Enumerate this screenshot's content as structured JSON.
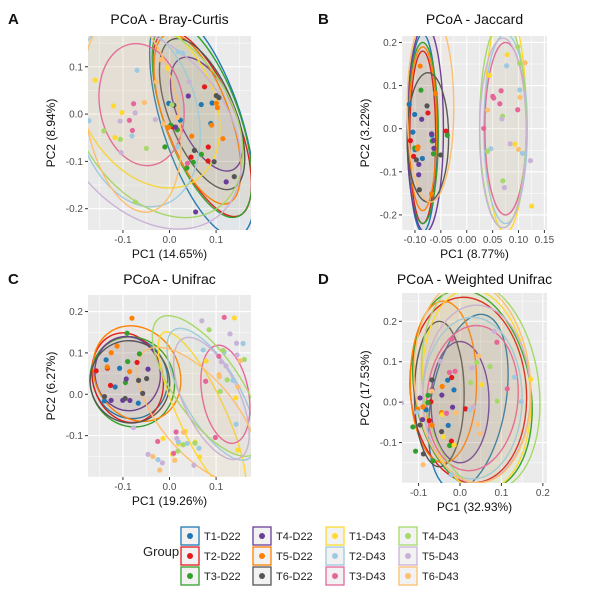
{
  "colors": {
    "T1-D22": "#1f78b4",
    "T2-D22": "#e31a1c",
    "T3-D22": "#33a02c",
    "T4-D22": "#6a3d9a",
    "T5-D22": "#ff7f00",
    "T6-D22": "#555555",
    "T1-D43": "#ffd92f",
    "T2-D43": "#9ecae1",
    "T3-D43": "#e7669a",
    "T4-D43": "#a6d96a",
    "T5-D43": "#cab2d6",
    "T6-D43": "#fdbf6f"
  },
  "legend": {
    "title": "Group",
    "entries": [
      "T1-D22",
      "T4-D22",
      "T1-D43",
      "T4-D43",
      "T2-D22",
      "T5-D22",
      "T2-D43",
      "T5-D43",
      "T3-D22",
      "T6-D22",
      "T3-D43",
      "T6-D43"
    ]
  },
  "chart_data": [
    {
      "panel_label": "A",
      "type": "scatter",
      "title": "PCoA - Bray-Curtis",
      "xlabel": "PC1 (14.65%)",
      "ylabel": "PC2 (8.94%)",
      "xlim": [
        -0.175,
        0.175
      ],
      "ylim": [
        -0.245,
        0.165
      ],
      "xticks": [
        -0.1,
        0.0,
        0.1
      ],
      "xtick_labels": [
        "-0.1",
        "0.0",
        "0.1"
      ],
      "yticks": [
        -0.2,
        -0.1,
        0.0,
        0.1
      ],
      "ytick_labels": [
        "-0.2",
        "-0.1",
        "0.0",
        "0.1"
      ],
      "grid": true,
      "clusters": [
        {
          "center": [
            0.07,
            -0.01
          ],
          "spread": [
            0.045,
            0.075
          ],
          "groups": [
            "T1-D22",
            "T2-D22",
            "T3-D22",
            "T4-D22",
            "T5-D22",
            "T6-D22"
          ]
        },
        {
          "center": [
            -0.07,
            0.0
          ],
          "spread": [
            0.06,
            0.09
          ],
          "groups": [
            "T1-D43",
            "T2-D43",
            "T3-D43",
            "T4-D43",
            "T5-D43",
            "T6-D43"
          ]
        }
      ],
      "ellipses": [
        {
          "group": "T1-D22",
          "cx": 0.07,
          "cy": -0.02,
          "rx": 0.085,
          "ry": 0.25,
          "rot": -18
        },
        {
          "group": "T2-D22",
          "cx": 0.07,
          "cy": -0.02,
          "rx": 0.075,
          "ry": 0.21,
          "rot": -22
        },
        {
          "group": "T3-D22",
          "cx": 0.07,
          "cy": -0.01,
          "rx": 0.08,
          "ry": 0.22,
          "rot": -20
        },
        {
          "group": "T4-D22",
          "cx": 0.08,
          "cy": 0.0,
          "rx": 0.06,
          "ry": 0.13,
          "rot": -25
        },
        {
          "group": "T5-D22",
          "cx": 0.06,
          "cy": -0.01,
          "rx": 0.07,
          "ry": 0.19,
          "rot": -20
        },
        {
          "group": "T6-D22",
          "cx": 0.07,
          "cy": 0.0,
          "rx": 0.07,
          "ry": 0.17,
          "rot": -22
        },
        {
          "group": "T1-D43",
          "cx": -0.05,
          "cy": 0.03,
          "rx": 0.14,
          "ry": 0.2,
          "rot": -30
        },
        {
          "group": "T2-D43",
          "cx": -0.07,
          "cy": 0.0,
          "rx": 0.13,
          "ry": 0.2,
          "rot": -15
        },
        {
          "group": "T3-D43",
          "cx": -0.06,
          "cy": 0.02,
          "rx": 0.09,
          "ry": 0.13,
          "rot": -10
        },
        {
          "group": "T4-D43",
          "cx": -0.03,
          "cy": -0.01,
          "rx": 0.16,
          "ry": 0.23,
          "rot": -35
        },
        {
          "group": "T5-D43",
          "cx": -0.05,
          "cy": -0.03,
          "rx": 0.17,
          "ry": 0.24,
          "rot": -40
        },
        {
          "group": "T6-D43",
          "cx": -0.08,
          "cy": 0.0,
          "rx": 0.1,
          "ry": 0.21,
          "rot": -10
        }
      ]
    },
    {
      "panel_label": "B",
      "type": "scatter",
      "title": "PCoA - Jaccard",
      "xlabel": "PC1 (8.77%)",
      "ylabel": "PC2 (3.22%)",
      "xlim": [
        -0.125,
        0.155
      ],
      "ylim": [
        -0.235,
        0.215
      ],
      "xticks": [
        -0.1,
        -0.05,
        0.0,
        0.05,
        0.1,
        0.15
      ],
      "xtick_labels": [
        "-0.10",
        "-0.05",
        "0.00",
        "0.05",
        "0.10",
        "0.15"
      ],
      "yticks": [
        -0.2,
        -0.1,
        0.0,
        0.1,
        0.2
      ],
      "ytick_labels": [
        "-0.2",
        "-0.1",
        "0.0",
        "0.1",
        "0.2"
      ],
      "grid": true,
      "clusters": [
        {
          "center": [
            -0.085,
            -0.02
          ],
          "spread": [
            0.018,
            0.07
          ],
          "groups": [
            "T1-D22",
            "T2-D22",
            "T3-D22",
            "T4-D22",
            "T5-D22",
            "T6-D22"
          ]
        },
        {
          "center": [
            0.075,
            0.02
          ],
          "spread": [
            0.025,
            0.09
          ],
          "groups": [
            "T1-D43",
            "T2-D43",
            "T3-D43",
            "T4-D43",
            "T5-D43",
            "T6-D43"
          ]
        }
      ],
      "ellipses": [
        {
          "group": "T1-D22",
          "cx": -0.085,
          "cy": -0.01,
          "rx": 0.028,
          "ry": 0.23,
          "rot": 0
        },
        {
          "group": "T2-D22",
          "cx": -0.085,
          "cy": -0.02,
          "rx": 0.025,
          "ry": 0.2,
          "rot": 0
        },
        {
          "group": "T3-D22",
          "cx": -0.085,
          "cy": -0.01,
          "rx": 0.03,
          "ry": 0.21,
          "rot": 0
        },
        {
          "group": "T4-D22",
          "cx": -0.08,
          "cy": 0.0,
          "rx": 0.035,
          "ry": 0.24,
          "rot": 0
        },
        {
          "group": "T5-D22",
          "cx": -0.085,
          "cy": 0.0,
          "rx": 0.027,
          "ry": 0.19,
          "rot": 0
        },
        {
          "group": "T6-D22",
          "cx": -0.075,
          "cy": -0.02,
          "rx": 0.04,
          "ry": 0.15,
          "rot": 0
        },
        {
          "group": "T1-D43",
          "cx": 0.075,
          "cy": 0.02,
          "rx": 0.04,
          "ry": 0.26,
          "rot": 0
        },
        {
          "group": "T2-D43",
          "cx": 0.075,
          "cy": 0.0,
          "rx": 0.042,
          "ry": 0.22,
          "rot": 0
        },
        {
          "group": "T3-D43",
          "cx": 0.075,
          "cy": 0.0,
          "rx": 0.04,
          "ry": 0.2,
          "rot": 0
        },
        {
          "group": "T4-D43",
          "cx": 0.07,
          "cy": 0.01,
          "rx": 0.045,
          "ry": 0.24,
          "rot": 0
        },
        {
          "group": "T5-D43",
          "cx": 0.07,
          "cy": -0.01,
          "rx": 0.045,
          "ry": 0.22,
          "rot": 0
        },
        {
          "group": "T6-D43",
          "cx": -0.07,
          "cy": 0.05,
          "rx": 0.045,
          "ry": 0.22,
          "rot": 0
        }
      ]
    },
    {
      "panel_label": "C",
      "type": "scatter",
      "title": "PCoA - Unifrac",
      "xlabel": "PC1 (19.26%)",
      "ylabel": "PC2 (6.27%)",
      "xlim": [
        -0.175,
        0.175
      ],
      "ylim": [
        -0.2,
        0.24
      ],
      "xticks": [
        -0.1,
        0.0,
        0.1
      ],
      "xtick_labels": [
        "-0.1",
        "0.0",
        "0.1"
      ],
      "yticks": [
        -0.1,
        0.0,
        0.1,
        0.2
      ],
      "ytick_labels": [
        "-0.1",
        "0.0",
        "0.1",
        "0.2"
      ],
      "grid": true,
      "clusters": [
        {
          "center": [
            -0.09,
            0.04
          ],
          "spread": [
            0.04,
            0.05
          ],
          "groups": [
            "T1-D22",
            "T2-D22",
            "T3-D22",
            "T4-D22",
            "T5-D22",
            "T6-D22"
          ]
        },
        {
          "center": [
            0.02,
            -0.12
          ],
          "spread": [
            0.04,
            0.03
          ],
          "groups": [
            "T1-D43",
            "T2-D43",
            "T3-D43",
            "T4-D43",
            "T5-D43",
            "T6-D43"
          ]
        },
        {
          "center": [
            0.13,
            0.05
          ],
          "spread": [
            0.025,
            0.09
          ],
          "groups": [
            "T1-D43",
            "T2-D43",
            "T3-D43",
            "T4-D43",
            "T5-D43",
            "T6-D43"
          ]
        }
      ],
      "ellipses": [
        {
          "group": "T1-D22",
          "cx": -0.085,
          "cy": 0.04,
          "rx": 0.08,
          "ry": 0.1,
          "rot": -20
        },
        {
          "group": "T2-D22",
          "cx": -0.09,
          "cy": 0.04,
          "rx": 0.075,
          "ry": 0.11,
          "rot": -15
        },
        {
          "group": "T3-D22",
          "cx": -0.08,
          "cy": 0.03,
          "rx": 0.09,
          "ry": 0.11,
          "rot": -20
        },
        {
          "group": "T4-D22",
          "cx": -0.09,
          "cy": 0.05,
          "rx": 0.07,
          "ry": 0.09,
          "rot": -10
        },
        {
          "group": "T5-D22",
          "cx": -0.07,
          "cy": 0.05,
          "rx": 0.09,
          "ry": 0.12,
          "rot": -30
        },
        {
          "group": "T6-D22",
          "cx": -0.085,
          "cy": 0.03,
          "rx": 0.085,
          "ry": 0.1,
          "rot": -20
        },
        {
          "group": "T1-D43",
          "cx": 0.07,
          "cy": -0.05,
          "rx": 0.05,
          "ry": 0.22,
          "rot": -25
        },
        {
          "group": "T2-D43",
          "cx": 0.09,
          "cy": 0.0,
          "rx": 0.06,
          "ry": 0.18,
          "rot": -30
        },
        {
          "group": "T3-D43",
          "cx": 0.12,
          "cy": 0.0,
          "rx": 0.05,
          "ry": 0.12,
          "rot": -10
        },
        {
          "group": "T4-D43",
          "cx": 0.08,
          "cy": 0.02,
          "rx": 0.07,
          "ry": 0.2,
          "rot": -35
        },
        {
          "group": "T5-D43",
          "cx": 0.09,
          "cy": -0.01,
          "rx": 0.06,
          "ry": 0.16,
          "rot": -25
        },
        {
          "group": "T6-D43",
          "cx": 0.06,
          "cy": -0.05,
          "rx": 0.08,
          "ry": 0.2,
          "rot": -40
        }
      ]
    },
    {
      "panel_label": "D",
      "type": "scatter",
      "title": "PCoA - Weighted Unifrac",
      "xlabel": "PC1 (32.93%)",
      "ylabel": "PC2 (17.53%)",
      "xlim": [
        -0.14,
        0.21
      ],
      "ylim": [
        -0.2,
        0.27
      ],
      "xticks": [
        -0.1,
        0.0,
        0.1,
        0.2
      ],
      "xtick_labels": [
        "-0.1",
        "0.0",
        "0.1",
        "0.2"
      ],
      "yticks": [
        -0.1,
        0.0,
        0.1,
        0.2
      ],
      "ytick_labels": [
        "-0.1",
        "0.0",
        "0.1",
        "0.2"
      ],
      "grid": true,
      "clusters": [
        {
          "center": [
            -0.07,
            0.0
          ],
          "spread": [
            0.03,
            0.06
          ],
          "groups": [
            "T1-D22",
            "T2-D22",
            "T3-D22",
            "T4-D22",
            "T5-D22",
            "T6-D22"
          ]
        },
        {
          "center": [
            0.01,
            0.02
          ],
          "spread": [
            0.08,
            0.1
          ],
          "groups": [
            "T1-D43",
            "T2-D43",
            "T3-D43",
            "T4-D43",
            "T5-D43",
            "T6-D43"
          ]
        }
      ],
      "ellipses": [
        {
          "group": "T1-D22",
          "cx": 0.02,
          "cy": 0.0,
          "rx": 0.09,
          "ry": 0.22,
          "rot": 10
        },
        {
          "group": "T2-D22",
          "cx": 0.02,
          "cy": 0.03,
          "rx": 0.14,
          "ry": 0.23,
          "rot": -5
        },
        {
          "group": "T3-D22",
          "cx": 0.03,
          "cy": 0.03,
          "rx": 0.14,
          "ry": 0.25,
          "rot": -10
        },
        {
          "group": "T4-D22",
          "cx": 0.0,
          "cy": 0.0,
          "rx": 0.07,
          "ry": 0.15,
          "rot": 0
        },
        {
          "group": "T5-D22",
          "cx": -0.04,
          "cy": 0.05,
          "rx": 0.08,
          "ry": 0.2,
          "rot": 0
        },
        {
          "group": "T6-D22",
          "cx": -0.05,
          "cy": 0.02,
          "rx": 0.06,
          "ry": 0.18,
          "rot": 0
        },
        {
          "group": "T1-D43",
          "cx": 0.04,
          "cy": 0.03,
          "rx": 0.13,
          "ry": 0.25,
          "rot": -5
        },
        {
          "group": "T2-D43",
          "cx": 0.03,
          "cy": 0.01,
          "rx": 0.12,
          "ry": 0.2,
          "rot": 0
        },
        {
          "group": "T3-D43",
          "cx": 0.03,
          "cy": 0.01,
          "rx": 0.11,
          "ry": 0.18,
          "rot": 5
        },
        {
          "group": "T4-D43",
          "cx": 0.05,
          "cy": 0.04,
          "rx": 0.14,
          "ry": 0.26,
          "rot": -8
        },
        {
          "group": "T5-D43",
          "cx": 0.04,
          "cy": 0.02,
          "rx": 0.13,
          "ry": 0.22,
          "rot": 0
        },
        {
          "group": "T6-D43",
          "cx": 0.03,
          "cy": 0.05,
          "rx": 0.14,
          "ry": 0.25,
          "rot": -5
        }
      ]
    }
  ]
}
